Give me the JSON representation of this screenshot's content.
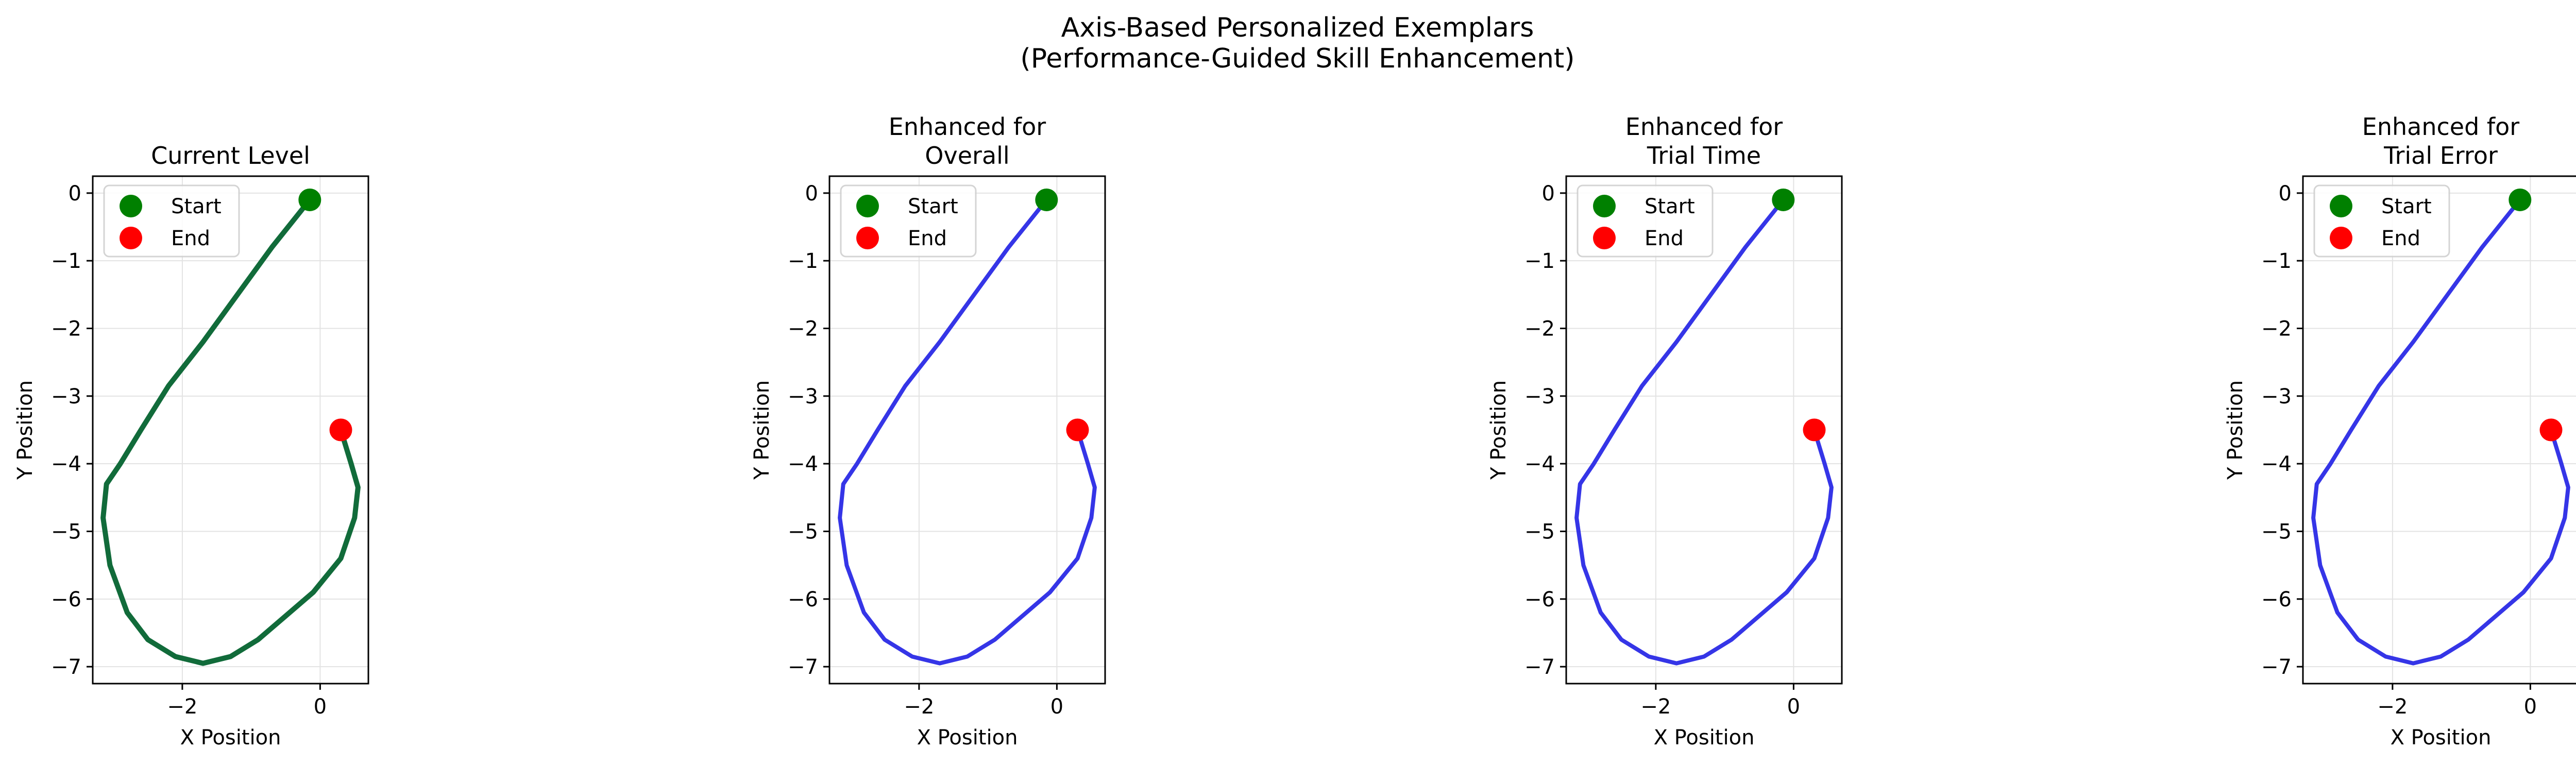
{
  "figure": {
    "title_line1": "Axis-Based Personalized Exemplars",
    "title_line2": "(Performance-Guided Skill Enhancement)"
  },
  "colors": {
    "current_path": "#116b3a",
    "enhanced_path": "#2a2ae6",
    "start_marker": "#008000",
    "end_marker": "#ff0000",
    "grid": "#e3e3e3"
  },
  "chart_data": [
    {
      "type": "line",
      "title": [
        "Current Level"
      ],
      "xlabel": "X Position",
      "ylabel": "Y Position",
      "xlim": [
        -3.3,
        0.7
      ],
      "ylim": [
        -7.25,
        0.25
      ],
      "xticks": [
        -2,
        0
      ],
      "xtick_labels": [
        "−2",
        "0"
      ],
      "yticks": [
        0,
        -1,
        -2,
        -3,
        -4,
        -5,
        -6,
        -7
      ],
      "ytick_labels": [
        "0",
        "−1",
        "−2",
        "−3",
        "−4",
        "−5",
        "−6",
        "−7"
      ],
      "grid": true,
      "legend": {
        "placement": "upper left",
        "entries": [
          "Start",
          "End"
        ]
      },
      "series": [
        {
          "name": "path",
          "color": "#116b3a",
          "x": [
            -0.15,
            -0.7,
            -1.2,
            -1.7,
            -2.2,
            -2.6,
            -2.9,
            -3.1,
            -3.15,
            -3.05,
            -2.8,
            -2.5,
            -2.1,
            -1.7,
            -1.3,
            -0.9,
            -0.5,
            -0.1,
            0.3,
            0.5,
            0.55,
            0.45,
            0.3
          ],
          "y": [
            -0.1,
            -0.8,
            -1.5,
            -2.2,
            -2.85,
            -3.5,
            -4.0,
            -4.3,
            -4.8,
            -5.5,
            -6.2,
            -6.6,
            -6.85,
            -6.95,
            -6.85,
            -6.6,
            -6.25,
            -5.9,
            -5.4,
            -4.8,
            -4.35,
            -4.0,
            -3.5
          ]
        }
      ],
      "start": {
        "x": -0.15,
        "y": -0.1
      },
      "end": {
        "x": 0.3,
        "y": -3.5
      }
    },
    {
      "type": "line",
      "title": [
        "Enhanced for",
        "Overall"
      ],
      "xlabel": "X Position",
      "ylabel": "Y Position",
      "xlim": [
        -3.3,
        0.7
      ],
      "ylim": [
        -7.25,
        0.25
      ],
      "xticks": [
        -2,
        0
      ],
      "xtick_labels": [
        "−2",
        "0"
      ],
      "yticks": [
        0,
        -1,
        -2,
        -3,
        -4,
        -5,
        -6,
        -7
      ],
      "ytick_labels": [
        "0",
        "−1",
        "−2",
        "−3",
        "−4",
        "−5",
        "−6",
        "−7"
      ],
      "grid": true,
      "legend": {
        "placement": "upper left",
        "entries": [
          "Start",
          "End"
        ]
      },
      "series": [
        {
          "name": "path",
          "color": "#2a2ae6",
          "x": [
            -0.15,
            -0.7,
            -1.2,
            -1.7,
            -2.2,
            -2.6,
            -2.9,
            -3.1,
            -3.15,
            -3.05,
            -2.8,
            -2.5,
            -2.1,
            -1.7,
            -1.3,
            -0.9,
            -0.5,
            -0.1,
            0.3,
            0.5,
            0.55,
            0.45,
            0.3
          ],
          "y": [
            -0.1,
            -0.8,
            -1.5,
            -2.2,
            -2.85,
            -3.5,
            -4.0,
            -4.3,
            -4.8,
            -5.5,
            -6.2,
            -6.6,
            -6.85,
            -6.95,
            -6.85,
            -6.6,
            -6.25,
            -5.9,
            -5.4,
            -4.8,
            -4.35,
            -4.0,
            -3.5
          ]
        }
      ],
      "start": {
        "x": -0.15,
        "y": -0.1
      },
      "end": {
        "x": 0.3,
        "y": -3.5
      }
    },
    {
      "type": "line",
      "title": [
        "Enhanced for",
        "Trial Time"
      ],
      "xlabel": "X Position",
      "ylabel": "Y Position",
      "xlim": [
        -3.3,
        0.7
      ],
      "ylim": [
        -7.25,
        0.25
      ],
      "xticks": [
        -2,
        0
      ],
      "xtick_labels": [
        "−2",
        "0"
      ],
      "yticks": [
        0,
        -1,
        -2,
        -3,
        -4,
        -5,
        -6,
        -7
      ],
      "ytick_labels": [
        "0",
        "−1",
        "−2",
        "−3",
        "−4",
        "−5",
        "−6",
        "−7"
      ],
      "grid": true,
      "legend": {
        "placement": "upper left",
        "entries": [
          "Start",
          "End"
        ]
      },
      "series": [
        {
          "name": "path",
          "color": "#2a2ae6",
          "x": [
            -0.15,
            -0.7,
            -1.2,
            -1.7,
            -2.2,
            -2.6,
            -2.9,
            -3.1,
            -3.15,
            -3.05,
            -2.8,
            -2.5,
            -2.1,
            -1.7,
            -1.3,
            -0.9,
            -0.5,
            -0.1,
            0.3,
            0.5,
            0.55,
            0.45,
            0.3
          ],
          "y": [
            -0.1,
            -0.8,
            -1.5,
            -2.2,
            -2.85,
            -3.5,
            -4.0,
            -4.3,
            -4.8,
            -5.5,
            -6.2,
            -6.6,
            -6.85,
            -6.95,
            -6.85,
            -6.6,
            -6.25,
            -5.9,
            -5.4,
            -4.8,
            -4.35,
            -4.0,
            -3.5
          ]
        }
      ],
      "start": {
        "x": -0.15,
        "y": -0.1
      },
      "end": {
        "x": 0.3,
        "y": -3.5
      }
    },
    {
      "type": "line",
      "title": [
        "Enhanced for",
        "Trial Error"
      ],
      "xlabel": "X Position",
      "ylabel": "Y Position",
      "xlim": [
        -3.3,
        0.7
      ],
      "ylim": [
        -7.25,
        0.25
      ],
      "xticks": [
        -2,
        0
      ],
      "xtick_labels": [
        "−2",
        "0"
      ],
      "yticks": [
        0,
        -1,
        -2,
        -3,
        -4,
        -5,
        -6,
        -7
      ],
      "ytick_labels": [
        "0",
        "−1",
        "−2",
        "−3",
        "−4",
        "−5",
        "−6",
        "−7"
      ],
      "grid": true,
      "legend": {
        "placement": "upper left",
        "entries": [
          "Start",
          "End"
        ]
      },
      "series": [
        {
          "name": "path",
          "color": "#2a2ae6",
          "x": [
            -0.15,
            -0.7,
            -1.2,
            -1.7,
            -2.2,
            -2.6,
            -2.9,
            -3.1,
            -3.15,
            -3.05,
            -2.8,
            -2.5,
            -2.1,
            -1.7,
            -1.3,
            -0.9,
            -0.5,
            -0.1,
            0.3,
            0.5,
            0.55,
            0.45,
            0.3
          ],
          "y": [
            -0.1,
            -0.8,
            -1.5,
            -2.2,
            -2.85,
            -3.5,
            -4.0,
            -4.3,
            -4.8,
            -5.5,
            -6.2,
            -6.6,
            -6.85,
            -6.95,
            -6.85,
            -6.6,
            -6.25,
            -5.9,
            -5.4,
            -4.8,
            -4.35,
            -4.0,
            -3.5
          ]
        }
      ],
      "start": {
        "x": -0.15,
        "y": -0.1
      },
      "end": {
        "x": 0.3,
        "y": -3.5
      }
    }
  ]
}
